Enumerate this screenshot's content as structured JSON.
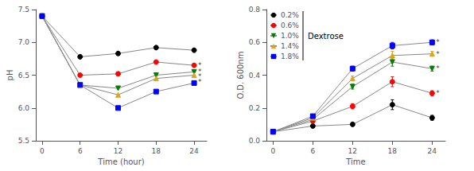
{
  "chart_data": [
    {
      "type": "line",
      "x": [
        0,
        6,
        12,
        18,
        24
      ],
      "xlabel": "Time (hour)",
      "ylabel": "pH",
      "xlim": [
        -1,
        26
      ],
      "xticks": [
        0,
        6,
        12,
        18,
        24
      ],
      "ylim": [
        5.5,
        7.5
      ],
      "yticks": [
        5.5,
        {
          "value": 6,
          "label": "6.0"
        },
        6.5,
        {
          "value": 7,
          "label": "7.0"
        },
        7.5
      ],
      "grid": false,
      "series": [
        {
          "color": "black",
          "marker": "circle",
          "values": [
            7.4,
            6.78,
            6.83,
            6.92,
            6.88
          ]
        },
        {
          "color": "red",
          "marker": "circle",
          "values": [
            7.4,
            6.5,
            6.52,
            6.7,
            6.65
          ]
        },
        {
          "color": "green",
          "marker": "triangle_down",
          "values": [
            7.4,
            6.35,
            6.3,
            6.5,
            6.55
          ]
        },
        {
          "color": "goldenrod",
          "marker": "triangle_up",
          "values": [
            7.4,
            6.35,
            6.2,
            6.45,
            6.5
          ]
        },
        {
          "color": "blue",
          "marker": "square",
          "values": [
            7.4,
            6.35,
            6.0,
            6.25,
            6.38
          ]
        }
      ],
      "annotations": [
        {
          "text": "*",
          "x": 24,
          "y": 6.65
        },
        {
          "text": "*",
          "x": 24,
          "y": 6.55
        },
        {
          "text": "*",
          "x": 24,
          "y": 6.48
        },
        {
          "text": "*",
          "x": 24,
          "y": 6.4
        }
      ]
    },
    {
      "type": "line",
      "x": [
        0,
        6,
        12,
        18,
        24
      ],
      "xlabel": "Time",
      "ylabel": "O.D. 600nm",
      "xlim": [
        -1,
        26
      ],
      "xticks": [
        0,
        6,
        12,
        18,
        24
      ],
      "ylim": [
        0.0,
        0.8
      ],
      "yticks": [
        {
          "value": 0,
          "label": "0.0"
        },
        0.2,
        0.4,
        0.6,
        0.8
      ],
      "grid": false,
      "legend": "upper left",
      "legend_title": "Dextrose",
      "series": [
        {
          "name": "0.2%",
          "color": "black",
          "marker": "circle",
          "values": [
            0.055,
            0.09,
            0.1,
            0.22,
            0.14
          ],
          "errors": [
            0.005,
            0.008,
            0.01,
            0.03,
            0.015
          ]
        },
        {
          "name": "0.6%",
          "color": "red",
          "marker": "circle",
          "values": [
            0.055,
            0.12,
            0.21,
            0.36,
            0.29
          ],
          "errors": [
            0.005,
            0.01,
            0.015,
            0.03,
            0.015
          ]
        },
        {
          "name": "1.0%",
          "color": "green",
          "marker": "triangle_down",
          "values": [
            0.055,
            0.13,
            0.33,
            0.48,
            0.44
          ],
          "errors": [
            0.005,
            0.01,
            0.015,
            0.025,
            0.015
          ]
        },
        {
          "name": "1.4%",
          "color": "goldenrod",
          "marker": "triangle_up",
          "values": [
            0.055,
            0.14,
            0.38,
            0.52,
            0.53
          ],
          "errors": [
            0.005,
            0.01,
            0.015,
            0.025,
            0.015
          ]
        },
        {
          "name": "1.8%",
          "color": "blue",
          "marker": "square",
          "values": [
            0.055,
            0.15,
            0.44,
            0.58,
            0.6
          ],
          "errors": [
            0.005,
            0.01,
            0.015,
            0.02,
            0.015
          ]
        }
      ],
      "annotations": [
        {
          "text": "*",
          "x": 24,
          "y": 0.29
        },
        {
          "text": "*",
          "x": 24,
          "y": 0.44
        },
        {
          "text": "*",
          "x": 24,
          "y": 0.53
        },
        {
          "text": "*",
          "x": 24,
          "y": 0.6
        }
      ]
    }
  ]
}
